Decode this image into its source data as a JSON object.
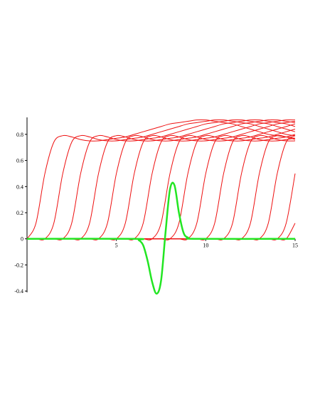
{
  "chart_data": {
    "type": "line",
    "x": [
      0,
      0.5,
      1,
      1.5,
      2,
      2.5,
      3,
      3.5,
      4,
      4.5,
      5,
      5.5,
      6,
      6.5,
      7,
      7.5,
      8,
      8.5,
      9,
      9.5,
      10,
      10.5,
      11,
      11.5,
      12,
      12.5,
      13,
      13.5,
      14,
      14.5,
      15
    ],
    "series": [
      {
        "color": "#ee1111",
        "values": [
          0,
          0.12,
          0.5,
          0.74,
          0.79,
          0.78,
          0.76,
          0.75,
          0.75,
          0.76,
          0.77,
          0.78,
          0.8,
          0.82,
          0.84,
          0.86,
          0.88,
          0.89,
          0.9,
          0.91,
          0.91,
          0.9,
          0.89,
          0.88,
          0.86,
          0.84,
          0.82,
          0.8,
          0.79,
          0.78,
          0.77
        ]
      },
      {
        "color": "#ee1111",
        "values": [
          0,
          0,
          0,
          0.12,
          0.5,
          0.74,
          0.79,
          0.78,
          0.76,
          0.75,
          0.75,
          0.76,
          0.77,
          0.78,
          0.8,
          0.82,
          0.84,
          0.86,
          0.88,
          0.89,
          0.9,
          0.91,
          0.91,
          0.9,
          0.89,
          0.88,
          0.86,
          0.84,
          0.82,
          0.8,
          0.79
        ]
      },
      {
        "color": "#ee1111",
        "values": [
          0,
          0,
          0,
          0,
          0,
          0.12,
          0.5,
          0.74,
          0.79,
          0.78,
          0.76,
          0.75,
          0.75,
          0.76,
          0.77,
          0.78,
          0.8,
          0.82,
          0.84,
          0.86,
          0.88,
          0.89,
          0.9,
          0.91,
          0.91,
          0.9,
          0.89,
          0.88,
          0.86,
          0.84,
          0.82
        ]
      },
      {
        "color": "#ee1111",
        "values": [
          0,
          0,
          0,
          0,
          0,
          0,
          0,
          0.12,
          0.5,
          0.74,
          0.79,
          0.78,
          0.76,
          0.75,
          0.75,
          0.76,
          0.77,
          0.78,
          0.8,
          0.82,
          0.84,
          0.86,
          0.88,
          0.89,
          0.9,
          0.91,
          0.91,
          0.9,
          0.89,
          0.88,
          0.86
        ]
      },
      {
        "color": "#ee1111",
        "values": [
          0,
          0,
          0,
          0,
          0,
          0,
          0,
          0,
          0,
          0.12,
          0.5,
          0.74,
          0.79,
          0.78,
          0.76,
          0.75,
          0.75,
          0.76,
          0.77,
          0.78,
          0.8,
          0.82,
          0.84,
          0.86,
          0.88,
          0.89,
          0.9,
          0.91,
          0.91,
          0.9,
          0.89
        ]
      },
      {
        "color": "#ee1111",
        "values": [
          0,
          0,
          0,
          0,
          0,
          0,
          0,
          0,
          0,
          0,
          0,
          0.12,
          0.5,
          0.74,
          0.79,
          0.78,
          0.76,
          0.75,
          0.75,
          0.76,
          0.77,
          0.78,
          0.8,
          0.82,
          0.84,
          0.86,
          0.88,
          0.89,
          0.9,
          0.91,
          0.91
        ]
      },
      {
        "color": "#ee1111",
        "values": [
          0,
          0,
          0,
          0,
          0,
          0,
          0,
          0,
          0,
          0,
          0,
          0,
          0,
          0.12,
          0.5,
          0.74,
          0.79,
          0.78,
          0.76,
          0.75,
          0.75,
          0.76,
          0.77,
          0.78,
          0.8,
          0.82,
          0.84,
          0.86,
          0.88,
          0.89,
          0.9
        ]
      },
      {
        "color": "#ee1111",
        "values": [
          0,
          0,
          0,
          0,
          0,
          0,
          0,
          0,
          0,
          0,
          0,
          0,
          0,
          0,
          0,
          0.12,
          0.5,
          0.74,
          0.79,
          0.78,
          0.76,
          0.75,
          0.75,
          0.76,
          0.77,
          0.78,
          0.8,
          0.82,
          0.84,
          0.86,
          0.88
        ]
      },
      {
        "color": "#ee1111",
        "values": [
          0,
          0,
          0,
          0,
          0,
          0,
          0,
          0,
          0,
          0,
          0,
          0,
          0,
          0,
          0,
          0,
          0,
          0.12,
          0.5,
          0.74,
          0.79,
          0.78,
          0.76,
          0.75,
          0.75,
          0.76,
          0.77,
          0.78,
          0.8,
          0.82,
          0.84
        ]
      },
      {
        "color": "#ee1111",
        "values": [
          0,
          0,
          0,
          0,
          0,
          0,
          0,
          0,
          0,
          0,
          0,
          0,
          0,
          0,
          0,
          0,
          0,
          0,
          0,
          0.12,
          0.5,
          0.74,
          0.79,
          0.78,
          0.76,
          0.75,
          0.75,
          0.76,
          0.77,
          0.78,
          0.8
        ]
      },
      {
        "color": "#ee1111",
        "values": [
          0,
          0,
          0,
          0,
          0,
          0,
          0,
          0,
          0,
          0,
          0,
          0,
          0,
          0,
          0,
          0,
          0,
          0,
          0,
          0,
          0,
          0.12,
          0.5,
          0.74,
          0.79,
          0.78,
          0.76,
          0.75,
          0.75,
          0.76,
          0.77
        ]
      },
      {
        "color": "#ee1111",
        "values": [
          0,
          0,
          0,
          0,
          0,
          0,
          0,
          0,
          0,
          0,
          0,
          0,
          0,
          0,
          0,
          0,
          0,
          0,
          0,
          0,
          0,
          0,
          0,
          0.12,
          0.5,
          0.74,
          0.79,
          0.78,
          0.76,
          0.75,
          0.75
        ]
      },
      {
        "color": "#ee1111",
        "values": [
          0,
          0,
          0,
          0,
          0,
          0,
          0,
          0,
          0,
          0,
          0,
          0,
          0,
          0,
          0,
          0,
          0,
          0,
          0,
          0,
          0,
          0,
          0,
          0,
          0,
          0.12,
          0.5,
          0.74,
          0.79,
          0.78,
          0.76
        ]
      },
      {
        "color": "#ee1111",
        "values": [
          0,
          0,
          0,
          0,
          0,
          0,
          0,
          0,
          0,
          0,
          0,
          0,
          0,
          0,
          0,
          0,
          0,
          0,
          0,
          0,
          0,
          0,
          0,
          0,
          0,
          0,
          0,
          0.12,
          0.5,
          0.74,
          0.79
        ]
      },
      {
        "color": "#ee1111",
        "values": [
          0,
          0,
          0,
          0,
          0,
          0,
          0,
          0,
          0,
          0,
          0,
          0,
          0,
          0,
          0,
          0,
          0,
          0,
          0,
          0,
          0,
          0,
          0,
          0,
          0,
          0,
          0,
          0,
          0,
          0.12,
          0.5
        ]
      },
      {
        "color": "#ee1111",
        "values": [
          0,
          0,
          0,
          0,
          0,
          0,
          0,
          0,
          0,
          0,
          0,
          0,
          0,
          0,
          0,
          0,
          0,
          0,
          0,
          0,
          0,
          0,
          0,
          0,
          0,
          0,
          0,
          0,
          0,
          0,
          0.12
        ]
      },
      {
        "color": "#22e622",
        "width": 2.5,
        "x": [
          0,
          6,
          6.25,
          6.5,
          6.75,
          7,
          7.25,
          7.5,
          7.75,
          8,
          8.25,
          8.5,
          8.75,
          9,
          9.5,
          15
        ],
        "values": [
          0,
          0,
          -0.01,
          -0.05,
          -0.17,
          -0.33,
          -0.42,
          -0.32,
          0.05,
          0.38,
          0.41,
          0.2,
          0.05,
          0.01,
          0,
          0
        ]
      }
    ],
    "xlim": [
      0,
      15
    ],
    "xticks": [
      5,
      10,
      15
    ],
    "ylim": [
      -0.41,
      0.93
    ],
    "yticks": [
      0.8,
      0.6,
      0.4,
      0.2,
      0,
      -0.2,
      -0.4
    ],
    "grid": false
  }
}
